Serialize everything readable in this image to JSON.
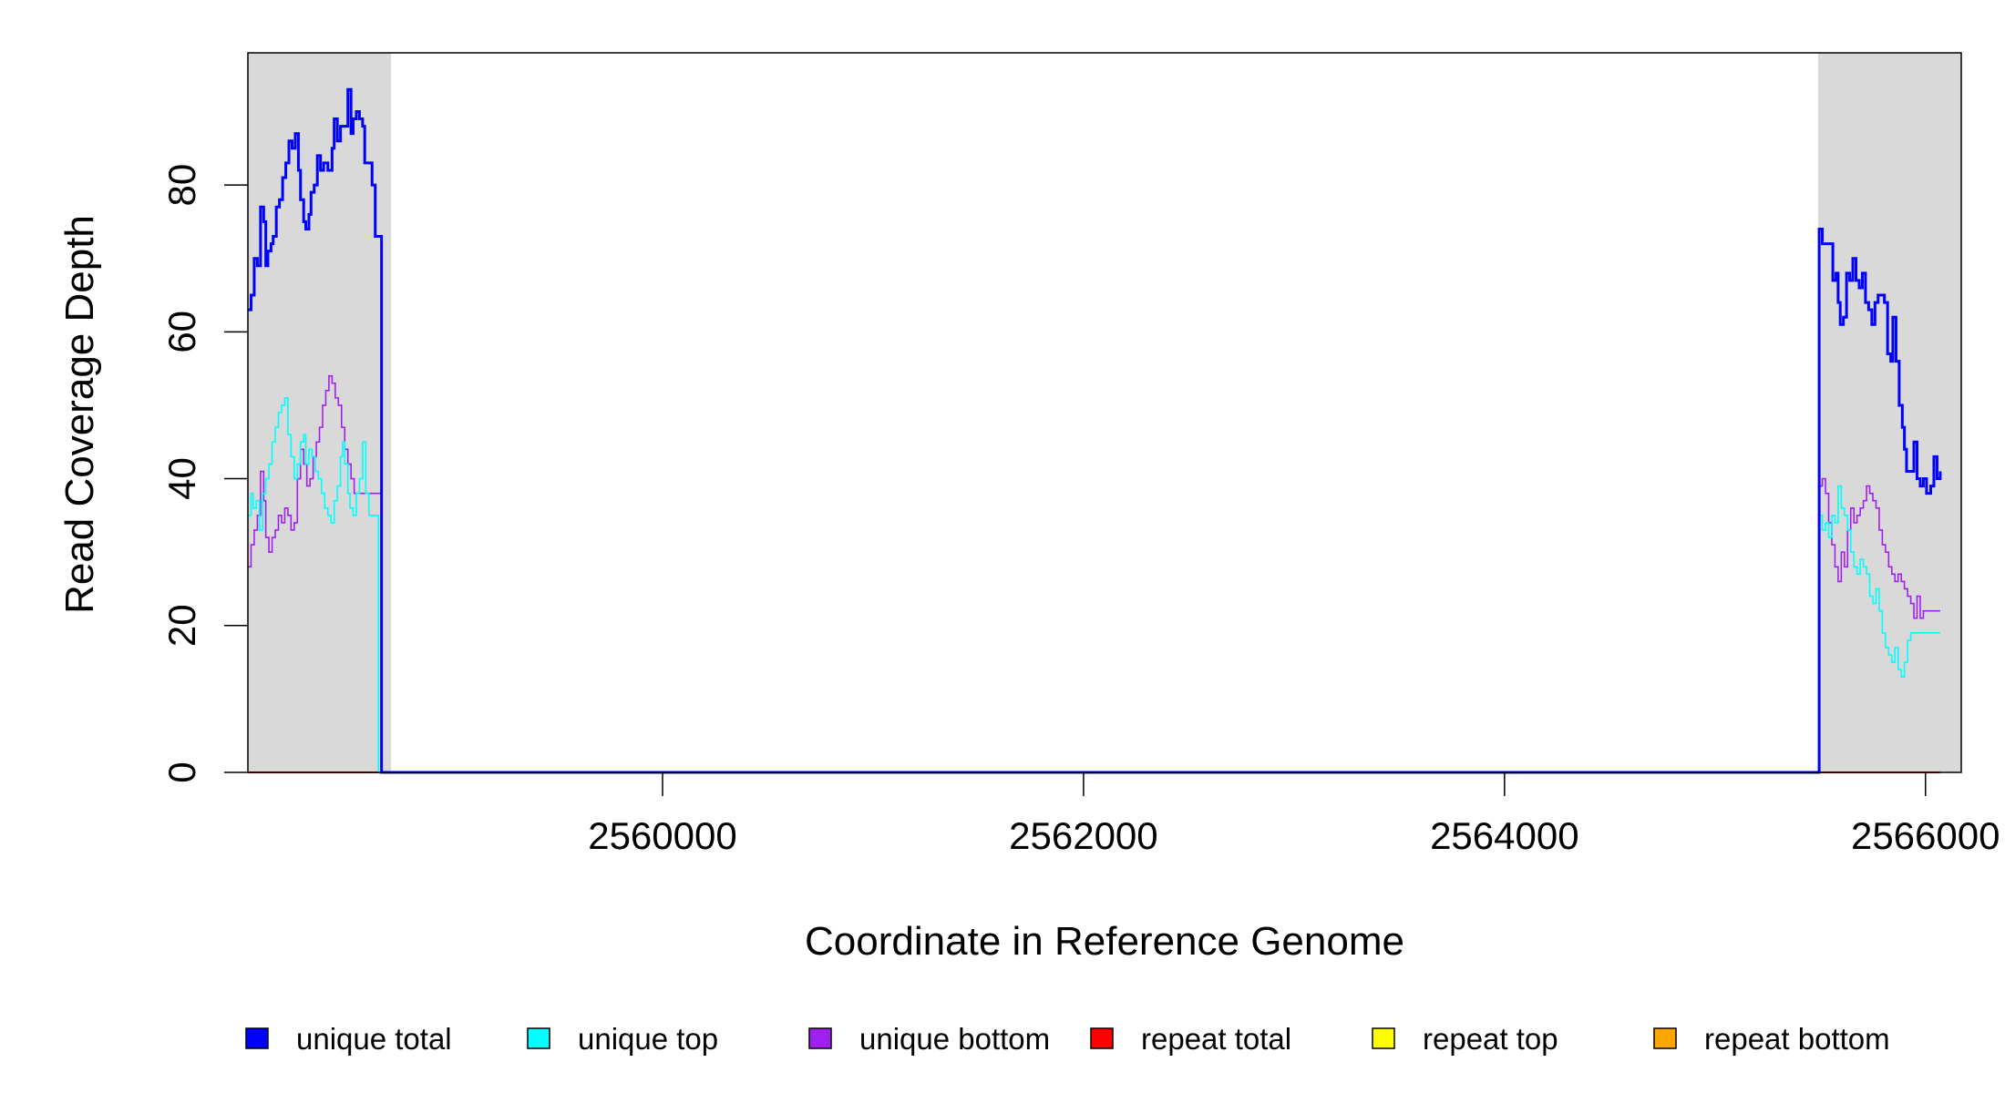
{
  "chart_data": {
    "type": "line",
    "title": "",
    "xlabel": "Coordinate in Reference Genome",
    "ylabel": "Read Coverage Depth",
    "xlim": [
      2558030,
      2566170
    ],
    "ylim": [
      0,
      98
    ],
    "x_ticks": [
      2560000,
      2562000,
      2564000,
      2566000
    ],
    "x_tick_labels": [
      "2560000",
      "2562000",
      "2564000",
      "2566000"
    ],
    "y_ticks": [
      0,
      20,
      40,
      60,
      80
    ],
    "y_tick_labels": [
      "0",
      "20",
      "40",
      "60",
      "80"
    ],
    "grid": false,
    "legend_position": "bottom",
    "shaded_regions": [
      {
        "from": 2558030,
        "to": 2558710,
        "color": "#d9d9d9"
      },
      {
        "from": 2565490,
        "to": 2566170,
        "color": "#d9d9d9"
      }
    ],
    "series": [
      {
        "name": "unique total",
        "color": "#0000ff",
        "width": 3,
        "points": [
          [
            2558030,
            63
          ],
          [
            2558045,
            65
          ],
          [
            2558060,
            70
          ],
          [
            2558075,
            69
          ],
          [
            2558090,
            77
          ],
          [
            2558105,
            75
          ],
          [
            2558115,
            69
          ],
          [
            2558125,
            71
          ],
          [
            2558140,
            72
          ],
          [
            2558150,
            73
          ],
          [
            2558165,
            77
          ],
          [
            2558180,
            78
          ],
          [
            2558195,
            81
          ],
          [
            2558210,
            83
          ],
          [
            2558225,
            86
          ],
          [
            2558240,
            85
          ],
          [
            2558255,
            87
          ],
          [
            2558270,
            82
          ],
          [
            2558280,
            78
          ],
          [
            2558295,
            75
          ],
          [
            2558305,
            74
          ],
          [
            2558320,
            76
          ],
          [
            2558330,
            79
          ],
          [
            2558345,
            80
          ],
          [
            2558360,
            84
          ],
          [
            2558375,
            82
          ],
          [
            2558390,
            83
          ],
          [
            2558410,
            82
          ],
          [
            2558430,
            85
          ],
          [
            2558440,
            89
          ],
          [
            2558455,
            86
          ],
          [
            2558470,
            88
          ],
          [
            2558490,
            88
          ],
          [
            2558505,
            93
          ],
          [
            2558520,
            87
          ],
          [
            2558530,
            89
          ],
          [
            2558545,
            90
          ],
          [
            2558560,
            89
          ],
          [
            2558575,
            88
          ],
          [
            2558585,
            83
          ],
          [
            2558605,
            83
          ],
          [
            2558620,
            80
          ],
          [
            2558635,
            73
          ],
          [
            2558650,
            73
          ],
          [
            2558665,
            0
          ],
          [
            2565485,
            0
          ],
          [
            2565495,
            74
          ],
          [
            2565510,
            72
          ],
          [
            2565540,
            72
          ],
          [
            2565560,
            67
          ],
          [
            2565575,
            68
          ],
          [
            2565585,
            64
          ],
          [
            2565595,
            61
          ],
          [
            2565610,
            62
          ],
          [
            2565625,
            68
          ],
          [
            2565640,
            67
          ],
          [
            2565655,
            70
          ],
          [
            2565670,
            67
          ],
          [
            2565685,
            66
          ],
          [
            2565700,
            68
          ],
          [
            2565715,
            64
          ],
          [
            2565730,
            63
          ],
          [
            2565745,
            61
          ],
          [
            2565760,
            64
          ],
          [
            2565775,
            65
          ],
          [
            2565805,
            64
          ],
          [
            2565820,
            57
          ],
          [
            2565835,
            56
          ],
          [
            2565845,
            62
          ],
          [
            2565860,
            56
          ],
          [
            2565875,
            50
          ],
          [
            2565890,
            47
          ],
          [
            2565900,
            44
          ],
          [
            2565910,
            41
          ],
          [
            2565930,
            41
          ],
          [
            2565945,
            45
          ],
          [
            2565960,
            40
          ],
          [
            2565975,
            39
          ],
          [
            2565990,
            40
          ],
          [
            2566005,
            38
          ],
          [
            2566025,
            39
          ],
          [
            2566040,
            43
          ],
          [
            2566055,
            40
          ],
          [
            2566070,
            41
          ]
        ]
      },
      {
        "name": "unique top",
        "color": "#00ffff",
        "width": 1.6,
        "points": [
          [
            2558030,
            35
          ],
          [
            2558045,
            38
          ],
          [
            2558055,
            36
          ],
          [
            2558070,
            37
          ],
          [
            2558085,
            33
          ],
          [
            2558100,
            38
          ],
          [
            2558115,
            40
          ],
          [
            2558130,
            42
          ],
          [
            2558145,
            45
          ],
          [
            2558160,
            47
          ],
          [
            2558175,
            49
          ],
          [
            2558190,
            50
          ],
          [
            2558205,
            51
          ],
          [
            2558220,
            46
          ],
          [
            2558235,
            43
          ],
          [
            2558250,
            40
          ],
          [
            2558265,
            42
          ],
          [
            2558280,
            45
          ],
          [
            2558295,
            46
          ],
          [
            2558305,
            42
          ],
          [
            2558320,
            44
          ],
          [
            2558335,
            43
          ],
          [
            2558350,
            41
          ],
          [
            2558365,
            40
          ],
          [
            2558380,
            38
          ],
          [
            2558395,
            36
          ],
          [
            2558410,
            35
          ],
          [
            2558425,
            34
          ],
          [
            2558440,
            37
          ],
          [
            2558455,
            39
          ],
          [
            2558470,
            43
          ],
          [
            2558480,
            45
          ],
          [
            2558490,
            42
          ],
          [
            2558505,
            38
          ],
          [
            2558515,
            36
          ],
          [
            2558530,
            35
          ],
          [
            2558545,
            38
          ],
          [
            2558560,
            40
          ],
          [
            2558575,
            45
          ],
          [
            2558590,
            38
          ],
          [
            2558605,
            35
          ],
          [
            2558620,
            35
          ],
          [
            2558650,
            0
          ],
          [
            2565485,
            0
          ],
          [
            2565495,
            35
          ],
          [
            2565510,
            33
          ],
          [
            2565525,
            34
          ],
          [
            2565540,
            32
          ],
          [
            2565555,
            35
          ],
          [
            2565570,
            34
          ],
          [
            2565585,
            39
          ],
          [
            2565600,
            36
          ],
          [
            2565615,
            35
          ],
          [
            2565630,
            33
          ],
          [
            2565645,
            30
          ],
          [
            2565660,
            28
          ],
          [
            2565675,
            27
          ],
          [
            2565690,
            29
          ],
          [
            2565705,
            28
          ],
          [
            2565720,
            27
          ],
          [
            2565735,
            24
          ],
          [
            2565750,
            23
          ],
          [
            2565765,
            25
          ],
          [
            2565780,
            22
          ],
          [
            2565795,
            19
          ],
          [
            2565810,
            17
          ],
          [
            2565825,
            16
          ],
          [
            2565840,
            15
          ],
          [
            2565855,
            17
          ],
          [
            2565870,
            14
          ],
          [
            2565885,
            13
          ],
          [
            2565900,
            15
          ],
          [
            2565915,
            18
          ],
          [
            2565930,
            19
          ],
          [
            2565945,
            19
          ],
          [
            2566000,
            19
          ],
          [
            2566070,
            19
          ]
        ]
      },
      {
        "name": "unique bottom",
        "color": "#a020f0",
        "width": 1.6,
        "points": [
          [
            2558030,
            28
          ],
          [
            2558045,
            31
          ],
          [
            2558060,
            33
          ],
          [
            2558075,
            35
          ],
          [
            2558090,
            41
          ],
          [
            2558105,
            37
          ],
          [
            2558115,
            32
          ],
          [
            2558130,
            30
          ],
          [
            2558145,
            32
          ],
          [
            2558160,
            33
          ],
          [
            2558175,
            35
          ],
          [
            2558190,
            34
          ],
          [
            2558205,
            36
          ],
          [
            2558220,
            35
          ],
          [
            2558235,
            33
          ],
          [
            2558250,
            34
          ],
          [
            2558265,
            40
          ],
          [
            2558280,
            44
          ],
          [
            2558295,
            42
          ],
          [
            2558310,
            39
          ],
          [
            2558325,
            40
          ],
          [
            2558340,
            43
          ],
          [
            2558355,
            45
          ],
          [
            2558370,
            47
          ],
          [
            2558385,
            50
          ],
          [
            2558400,
            52
          ],
          [
            2558415,
            54
          ],
          [
            2558430,
            53
          ],
          [
            2558445,
            51
          ],
          [
            2558460,
            50
          ],
          [
            2558475,
            47
          ],
          [
            2558490,
            44
          ],
          [
            2558505,
            42
          ],
          [
            2558520,
            40
          ],
          [
            2558535,
            38
          ],
          [
            2558550,
            38
          ],
          [
            2558665,
            0
          ],
          [
            2565485,
            0
          ],
          [
            2565495,
            39
          ],
          [
            2565510,
            40
          ],
          [
            2565525,
            38
          ],
          [
            2565540,
            34
          ],
          [
            2565555,
            31
          ],
          [
            2565570,
            28
          ],
          [
            2565585,
            26
          ],
          [
            2565600,
            30
          ],
          [
            2565615,
            28
          ],
          [
            2565630,
            33
          ],
          [
            2565645,
            36
          ],
          [
            2565660,
            34
          ],
          [
            2565675,
            35
          ],
          [
            2565690,
            36
          ],
          [
            2565705,
            37
          ],
          [
            2565720,
            39
          ],
          [
            2565735,
            38
          ],
          [
            2565750,
            37
          ],
          [
            2565765,
            36
          ],
          [
            2565780,
            33
          ],
          [
            2565795,
            31
          ],
          [
            2565810,
            30
          ],
          [
            2565825,
            28
          ],
          [
            2565840,
            27
          ],
          [
            2565855,
            26
          ],
          [
            2565870,
            27
          ],
          [
            2565885,
            26
          ],
          [
            2565900,
            25
          ],
          [
            2565915,
            24
          ],
          [
            2565930,
            23
          ],
          [
            2565945,
            21
          ],
          [
            2565960,
            24
          ],
          [
            2565975,
            21
          ],
          [
            2565990,
            22
          ],
          [
            2566070,
            22
          ]
        ]
      },
      {
        "name": "repeat total",
        "color": "#ff0000",
        "width": 2,
        "points": [
          [
            2558030,
            0
          ],
          [
            2566070,
            0
          ]
        ]
      },
      {
        "name": "repeat top",
        "color": "#ffff00",
        "width": 2,
        "points": [
          [
            2558030,
            0
          ],
          [
            2566070,
            0
          ]
        ]
      },
      {
        "name": "repeat bottom",
        "color": "#ffa500",
        "width": 2,
        "points": [
          [
            2558030,
            0
          ],
          [
            2566070,
            0
          ]
        ]
      }
    ]
  }
}
